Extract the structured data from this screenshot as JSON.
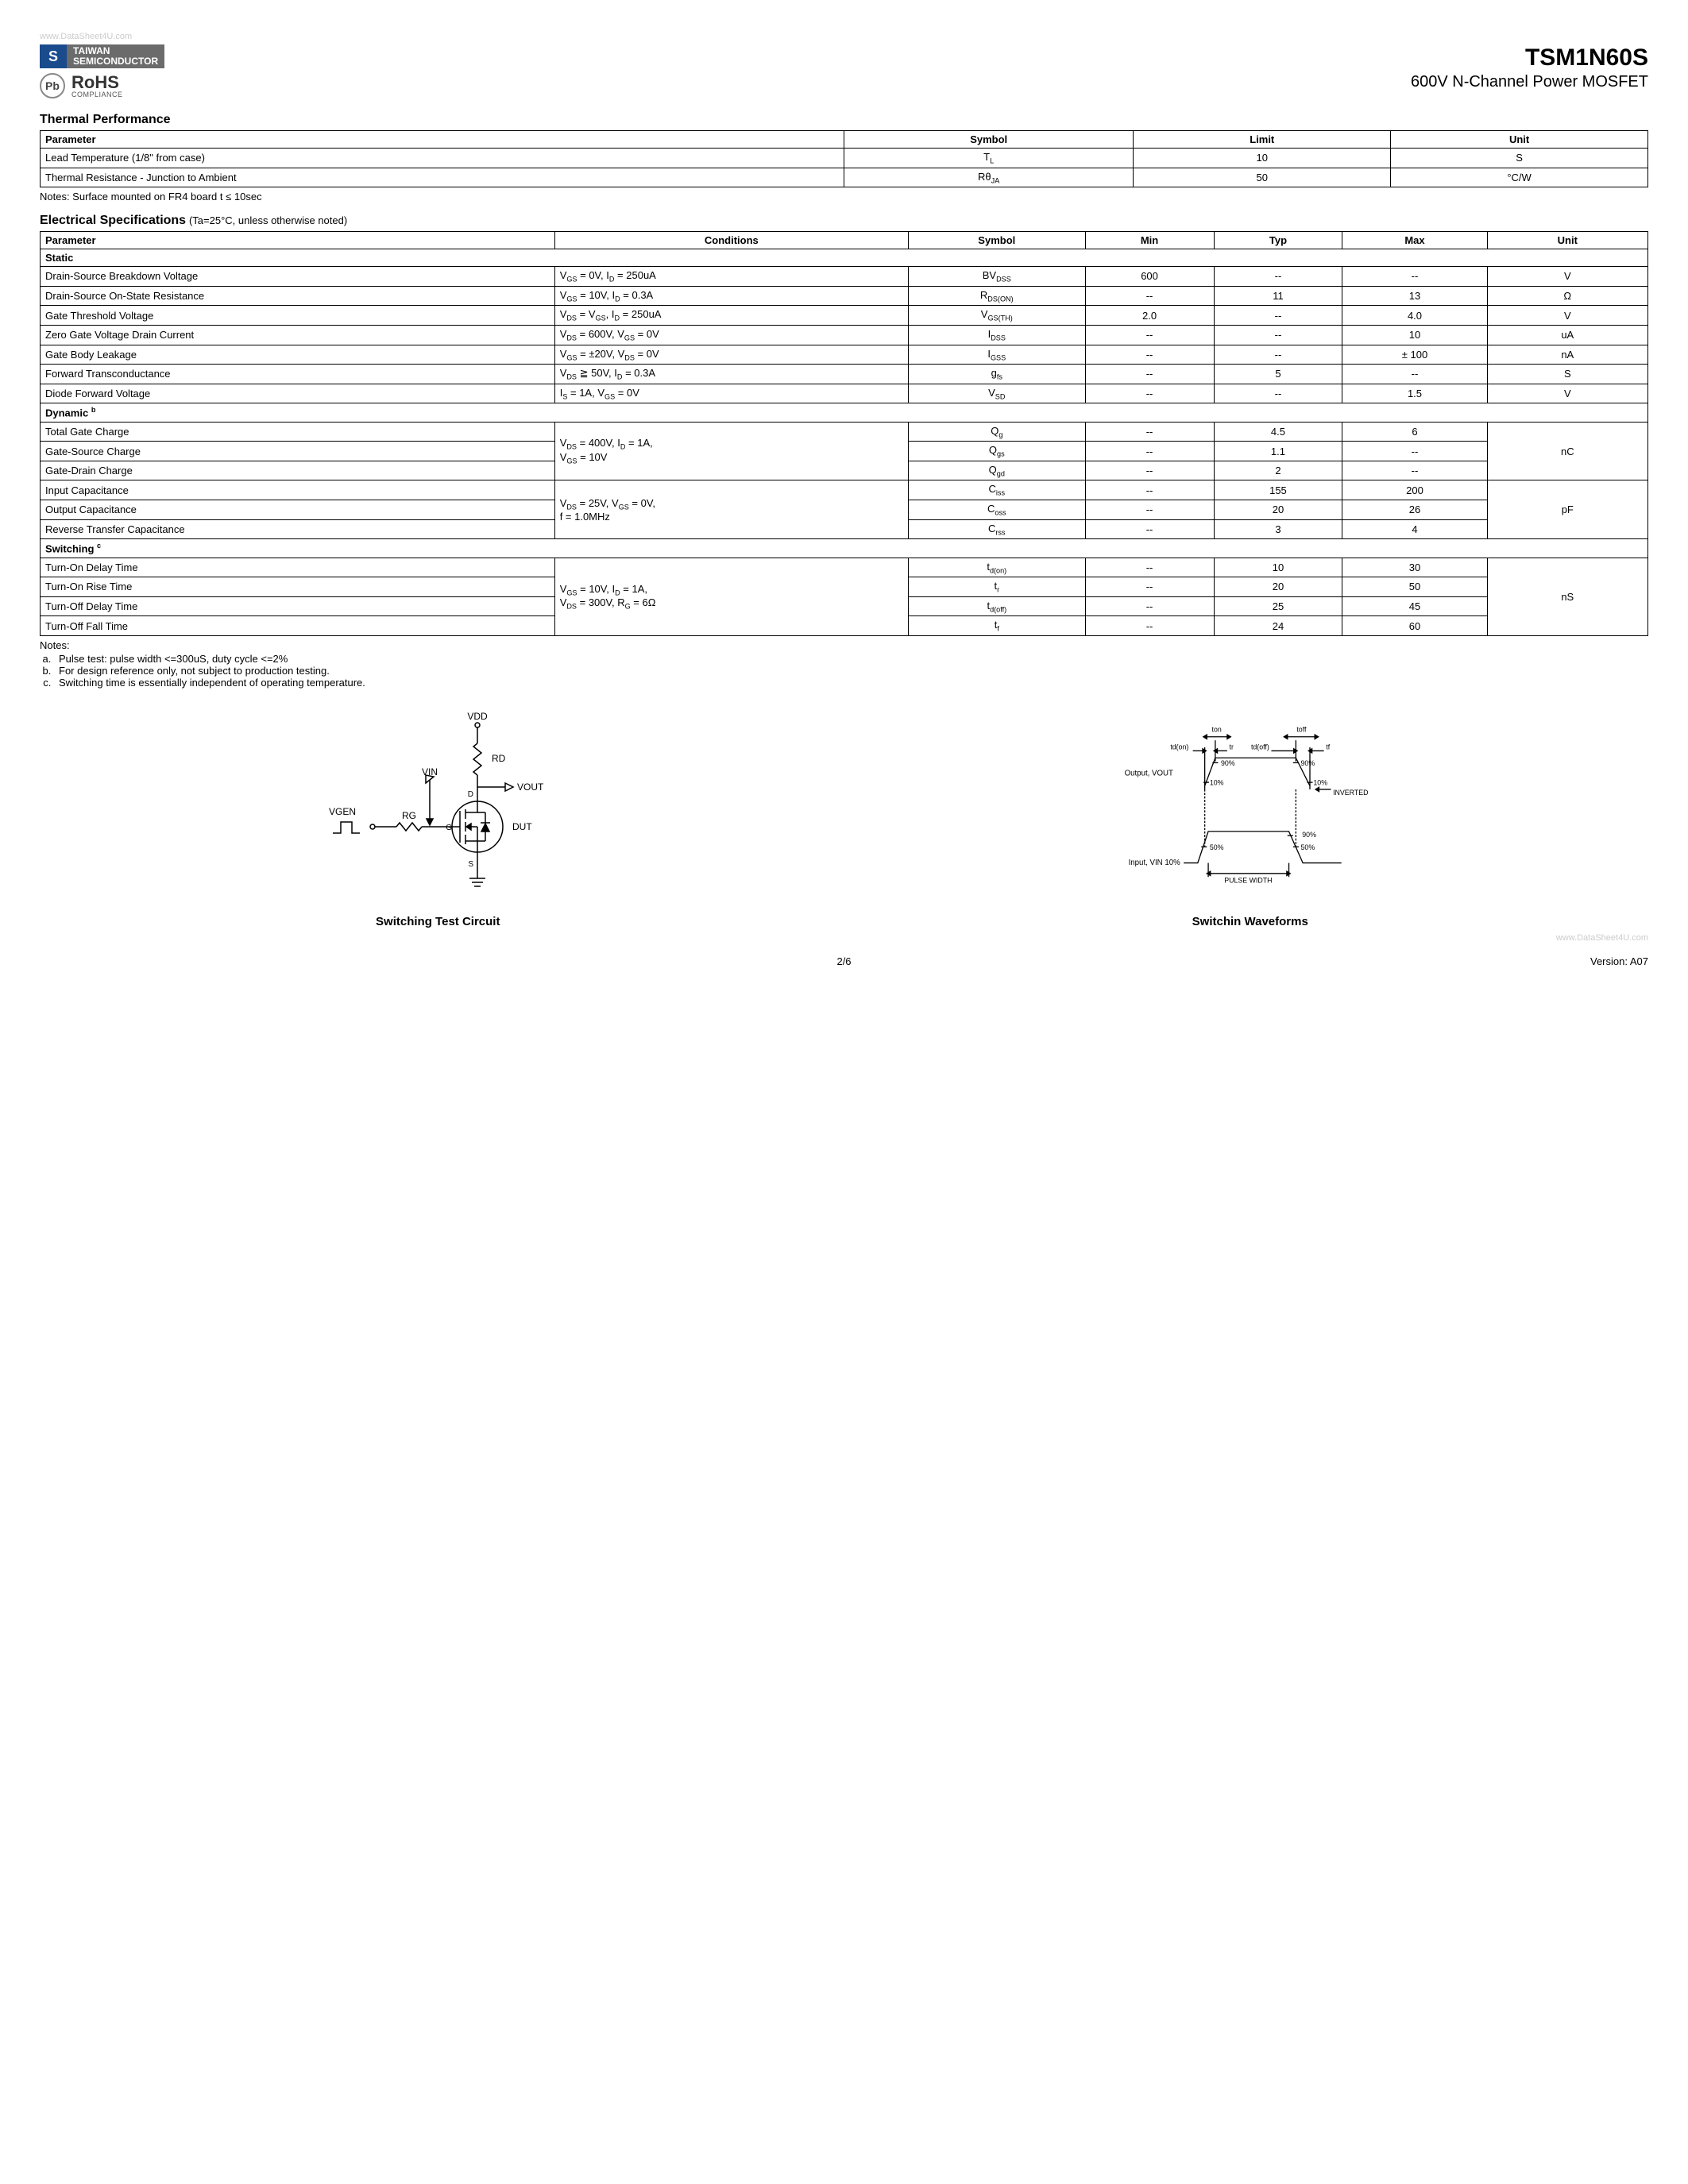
{
  "watermark": "www.DataSheet4U.com",
  "logo": {
    "brand1": "TAIWAN",
    "brand2": "SEMICONDUCTOR",
    "mark": "S",
    "pb": "Pb",
    "rohs": "RoHS",
    "rohs_sub": "COMPLIANCE"
  },
  "title": {
    "part": "TSM1N60S",
    "sub": "600V N-Channel Power MOSFET"
  },
  "thermal": {
    "heading": "Thermal Performance",
    "headers": [
      "Parameter",
      "Symbol",
      "Limit",
      "Unit"
    ],
    "rows": [
      {
        "param": "Lead Temperature (1/8\" from case)",
        "symbol": "T<sub>L</sub>",
        "limit": "10",
        "unit": "S"
      },
      {
        "param": "Thermal Resistance - Junction to Ambient",
        "symbol": "Rθ<sub>JA</sub>",
        "limit": "50",
        "unit": "°C/W"
      }
    ],
    "note": "Notes: Surface mounted on FR4 board t ≤ 10sec"
  },
  "elec": {
    "heading": "Electrical Specifications",
    "heading_note": "(Ta=25°C, unless otherwise noted)",
    "headers": [
      "Parameter",
      "Conditions",
      "Symbol",
      "Min",
      "Typ",
      "Max",
      "Unit"
    ],
    "groups": [
      {
        "name": "Static",
        "rows": [
          {
            "param": "Drain-Source Breakdown Voltage",
            "cond": "V<sub>GS</sub> = 0V, I<sub>D</sub> = 250uA",
            "symbol": "BV<sub>DSS</sub>",
            "min": "600",
            "typ": "--",
            "max": "--",
            "unit": "V"
          },
          {
            "param": "Drain-Source On-State Resistance",
            "cond": "V<sub>GS</sub> = 10V, I<sub>D</sub> = 0.3A",
            "symbol": "R<sub>DS(ON)</sub>",
            "min": "--",
            "typ": "11",
            "max": "13",
            "unit": "Ω"
          },
          {
            "param": "Gate Threshold Voltage",
            "cond": "V<sub>DS</sub> = V<sub>GS</sub>, I<sub>D</sub> = 250uA",
            "symbol": "V<sub>GS(TH)</sub>",
            "min": "2.0",
            "typ": "--",
            "max": "4.0",
            "unit": "V"
          },
          {
            "param": "Zero Gate Voltage Drain Current",
            "cond": "V<sub>DS</sub> = 600V, V<sub>GS</sub> = 0V",
            "symbol": "I<sub>DSS</sub>",
            "min": "--",
            "typ": "--",
            "max": "10",
            "unit": "uA"
          },
          {
            "param": "Gate Body Leakage",
            "cond": "V<sub>GS</sub> = ±20V, V<sub>DS</sub> = 0V",
            "symbol": "I<sub>GSS</sub>",
            "min": "--",
            "typ": "--",
            "max": "± 100",
            "unit": "nA"
          },
          {
            "param": "Forward Transconductance",
            "cond": "V<sub>DS</sub> ≧ 50V, I<sub>D</sub> = 0.3A",
            "symbol": "g<sub>fs</sub>",
            "min": "--",
            "typ": "5",
            "max": "--",
            "unit": "S"
          },
          {
            "param": "Diode Forward Voltage",
            "cond": "I<sub>S</sub> = 1A, V<sub>GS</sub> = 0V",
            "symbol": "V<sub>SD</sub>",
            "min": "--",
            "typ": "--",
            "max": "1.5",
            "unit": "V"
          }
        ]
      },
      {
        "name": "Dynamic <sup>b</sup>",
        "rows": [
          {
            "param": "Total Gate Charge",
            "cond": "V<sub>DS</sub> = 400V, I<sub>D</sub> = 1A,<br>V<sub>GS</sub> = 10V",
            "cond_rowspan": 3,
            "symbol": "Q<sub>g</sub>",
            "min": "--",
            "typ": "4.5",
            "max": "6",
            "unit": "nC",
            "unit_rowspan": 3
          },
          {
            "param": "Gate-Source Charge",
            "symbol": "Q<sub>gs</sub>",
            "min": "--",
            "typ": "1.1",
            "max": "--"
          },
          {
            "param": "Gate-Drain Charge",
            "symbol": "Q<sub>gd</sub>",
            "min": "--",
            "typ": "2",
            "max": "--"
          },
          {
            "param": "Input Capacitance",
            "cond": "V<sub>DS</sub> = 25V, V<sub>GS</sub> = 0V,<br>f = 1.0MHz",
            "cond_rowspan": 3,
            "symbol": "C<sub>iss</sub>",
            "min": "--",
            "typ": "155",
            "max": "200",
            "unit": "pF",
            "unit_rowspan": 3
          },
          {
            "param": "Output Capacitance",
            "symbol": "C<sub>oss</sub>",
            "min": "--",
            "typ": "20",
            "max": "26"
          },
          {
            "param": "Reverse Transfer Capacitance",
            "symbol": "C<sub>rss</sub>",
            "min": "--",
            "typ": "3",
            "max": "4"
          }
        ]
      },
      {
        "name": "Switching <sup>c</sup>",
        "rows": [
          {
            "param": "Turn-On Delay Time",
            "cond": "V<sub>GS</sub> = 10V, I<sub>D</sub> = 1A,<br>V<sub>DS</sub> = 300V, R<sub>G</sub> = 6Ω",
            "cond_rowspan": 4,
            "symbol": "t<sub>d(on)</sub>",
            "min": "--",
            "typ": "10",
            "max": "30",
            "unit": "nS",
            "unit_rowspan": 4
          },
          {
            "param": "Turn-On Rise Time",
            "symbol": "t<sub>r</sub>",
            "min": "--",
            "typ": "20",
            "max": "50"
          },
          {
            "param": "Turn-Off Delay Time",
            "symbol": "t<sub>d(off)</sub>",
            "min": "--",
            "typ": "25",
            "max": "45"
          },
          {
            "param": "Turn-Off Fall Time",
            "symbol": "t<sub>f</sub>",
            "min": "--",
            "typ": "24",
            "max": "60"
          }
        ]
      }
    ]
  },
  "notes": {
    "heading": "Notes:",
    "items": [
      "Pulse test: pulse width <=300uS, duty cycle <=2%",
      "For design reference only, not subject to production testing.",
      "Switching time is essentially independent of operating temperature."
    ]
  },
  "diagrams": {
    "circuit": {
      "caption": "Switching Test Circuit",
      "labels": {
        "vdd": "VDD",
        "rd": "RD",
        "vin": "VIN",
        "vout": "VOUT",
        "vgen": "VGEN",
        "rg": "RG",
        "dut": "DUT",
        "d": "D",
        "g": "G",
        "s": "S"
      }
    },
    "waveform": {
      "caption": "Switchin Waveforms",
      "labels": {
        "ton": "ton",
        "toff": "toff",
        "tdon": "td(on)",
        "tr": "tr",
        "tdoff": "td(off)",
        "tf": "tf",
        "p90": "90%",
        "p10": "10%",
        "p50": "50%",
        "inverted": "INVERTED",
        "pulsewidth": "PULSE WIDTH",
        "output": "Output, VOUT",
        "input": "Input, VIN 10%"
      }
    }
  },
  "footer": {
    "page": "2/6",
    "version": "Version: A07"
  }
}
